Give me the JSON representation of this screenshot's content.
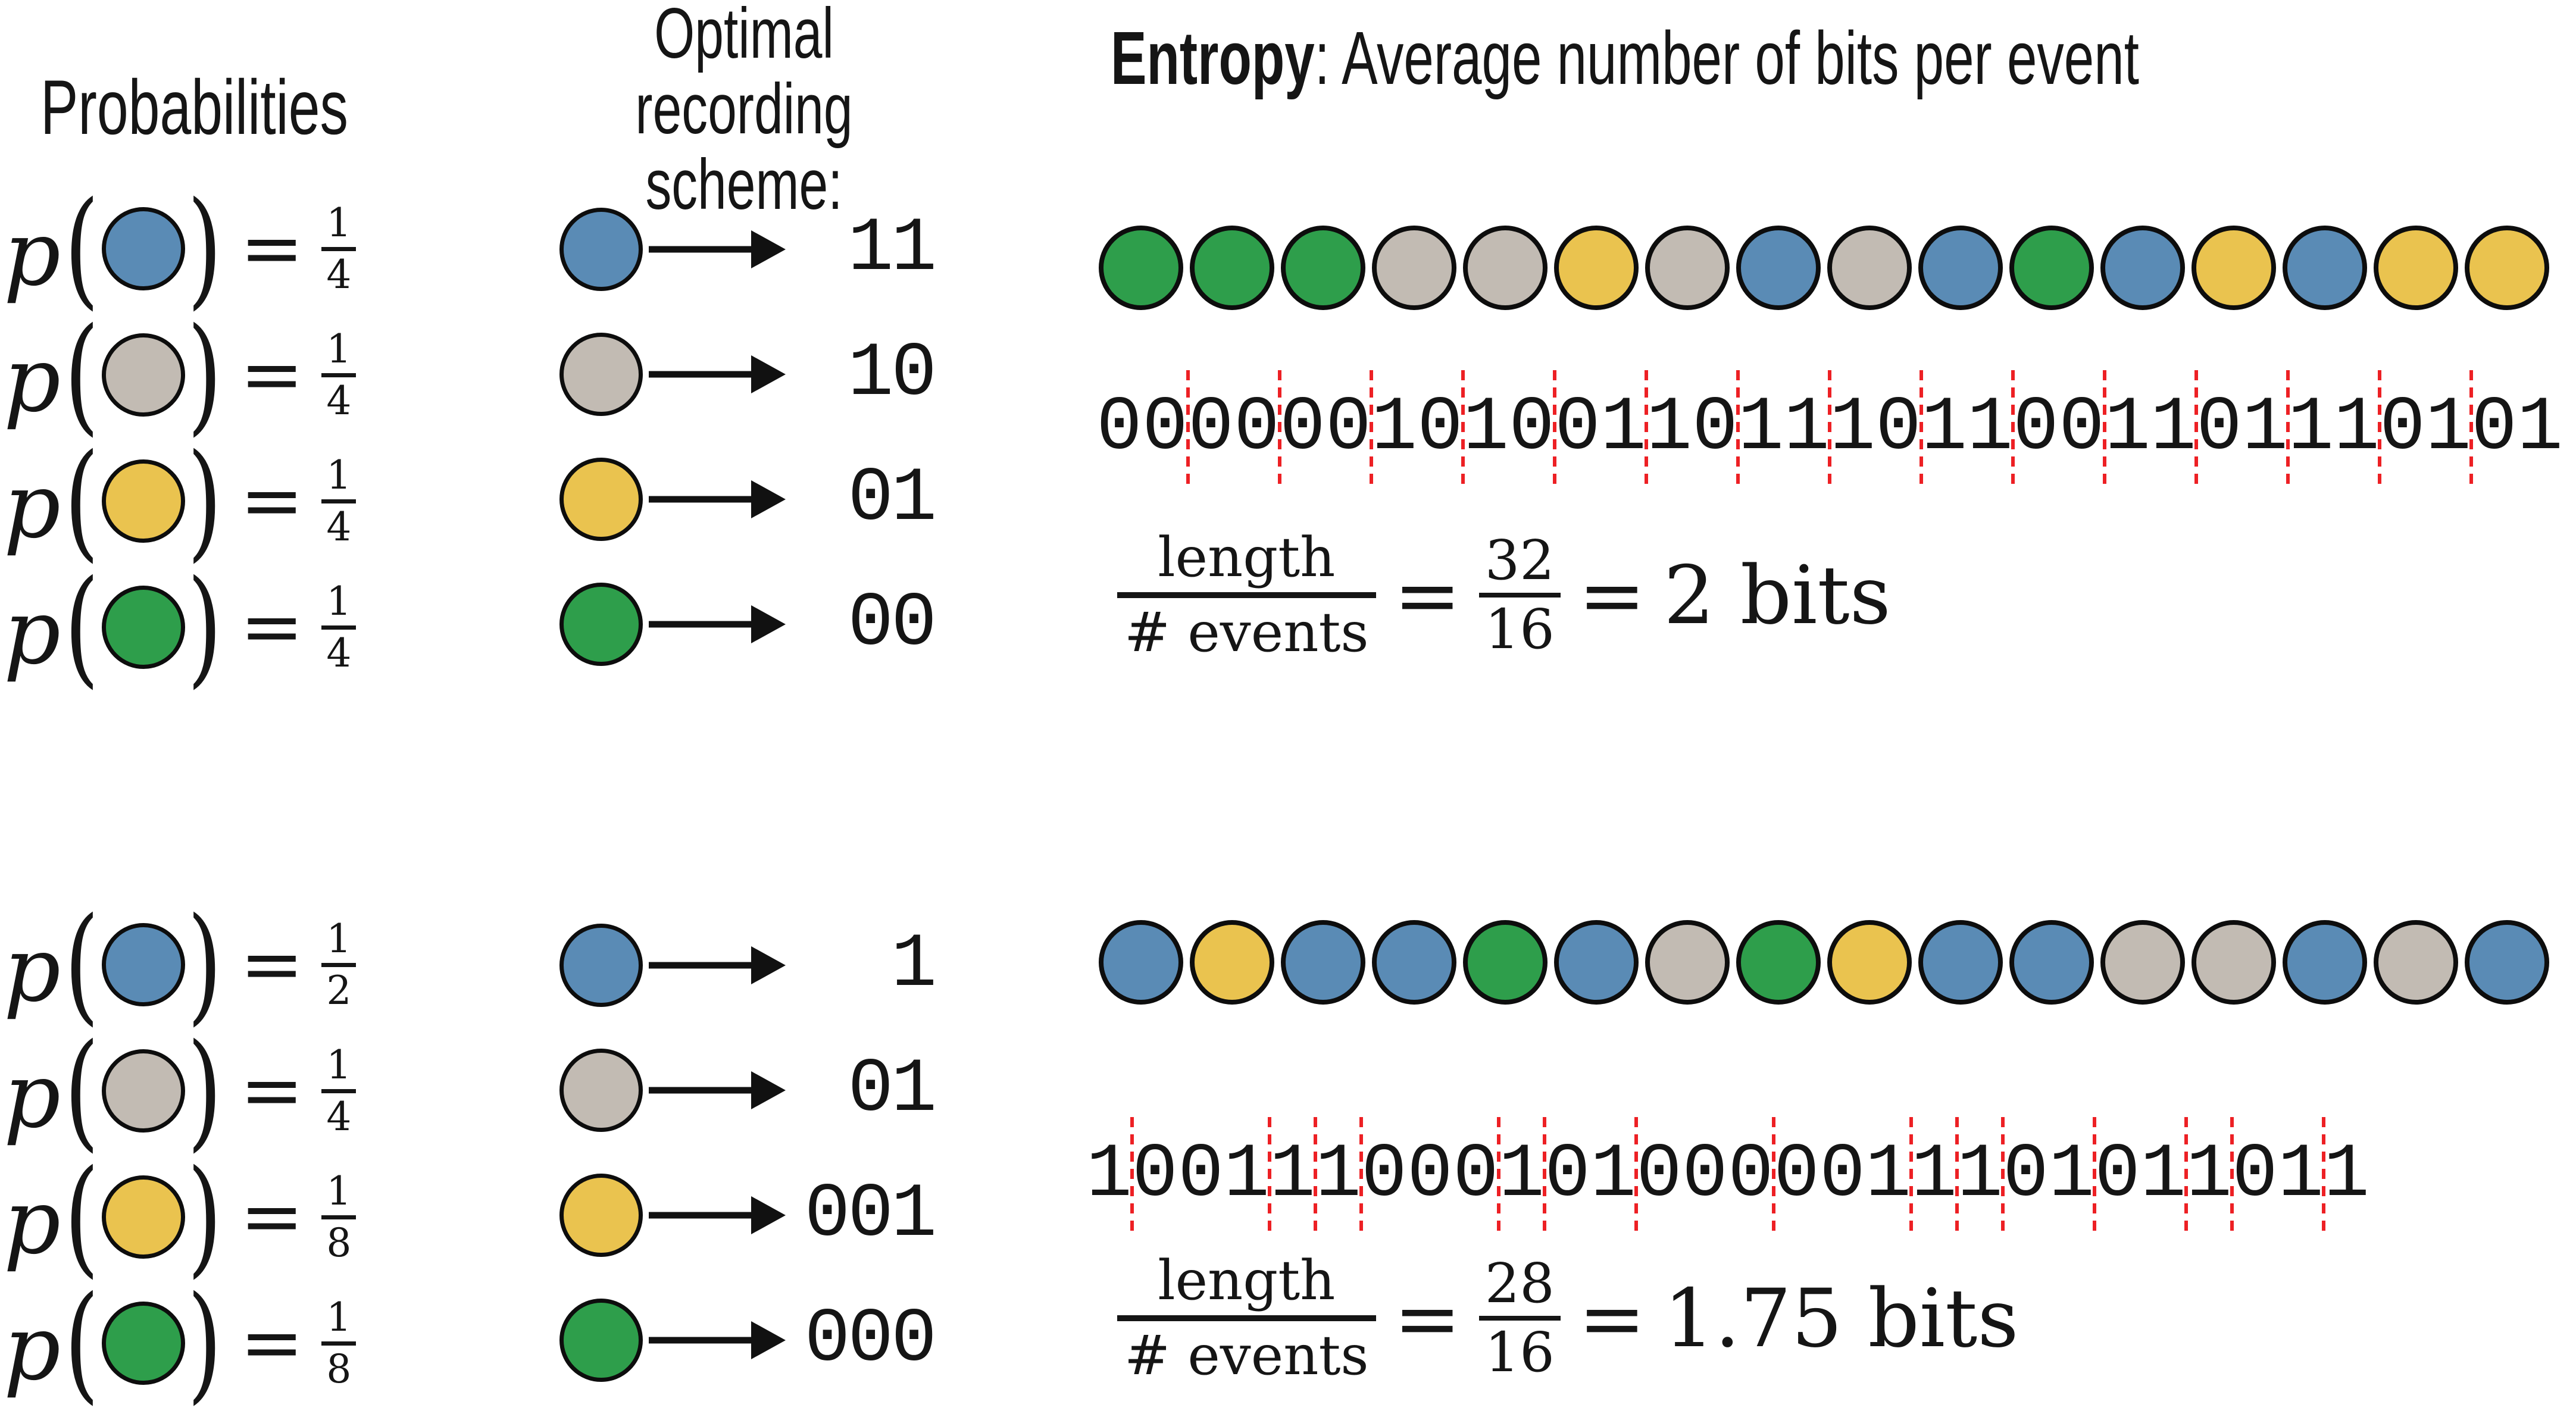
{
  "figure": {
    "titles": {
      "probabilities": "Probabilities",
      "scheme_line1": "Optimal recording",
      "scheme_line2": "scheme:",
      "entropy_bold": "Entropy",
      "entropy_rest": ": Average number of bits per event"
    },
    "math": {
      "p": "p",
      "open_paren": "(",
      "close_paren": ")",
      "equals": "="
    },
    "colors": {
      "blue": "#5a8bb5",
      "gray": "#c2bbb3",
      "yellow": "#eac34f",
      "green": "#2e9e4b",
      "red": "#ed2024",
      "ink": "#151515"
    },
    "sections": [
      {
        "probabilities": [
          {
            "color": "blue",
            "numerator": "1",
            "denominator": "4"
          },
          {
            "color": "gray",
            "numerator": "1",
            "denominator": "4"
          },
          {
            "color": "yellow",
            "numerator": "1",
            "denominator": "4"
          },
          {
            "color": "green",
            "numerator": "1",
            "denominator": "4"
          }
        ],
        "scheme": [
          {
            "color": "blue",
            "code": "11"
          },
          {
            "color": "gray",
            "code": "10"
          },
          {
            "color": "yellow",
            "code": "01"
          },
          {
            "color": "green",
            "code": "00"
          }
        ],
        "event_sequence": [
          "green",
          "green",
          "green",
          "gray",
          "gray",
          "yellow",
          "gray",
          "blue",
          "gray",
          "blue",
          "green",
          "blue",
          "yellow",
          "blue",
          "yellow",
          "yellow"
        ],
        "bit_groups": [
          "00",
          "00",
          "00",
          "10",
          "10",
          "01",
          "10",
          "11",
          "10",
          "11",
          "00",
          "11",
          "01",
          "11",
          "01",
          "01"
        ],
        "bit_string": "00000010100110111011001101110101",
        "formula": {
          "numerator": "length",
          "denominator": "# events",
          "equals": "=",
          "ratio_numerator": "32",
          "ratio_denominator": "16",
          "result": "2 bits"
        }
      },
      {
        "probabilities": [
          {
            "color": "blue",
            "numerator": "1",
            "denominator": "2"
          },
          {
            "color": "gray",
            "numerator": "1",
            "denominator": "4"
          },
          {
            "color": "yellow",
            "numerator": "1",
            "denominator": "8"
          },
          {
            "color": "green",
            "numerator": "1",
            "denominator": "8"
          }
        ],
        "scheme": [
          {
            "color": "blue",
            "code": "1"
          },
          {
            "color": "gray",
            "code": "01"
          },
          {
            "color": "yellow",
            "code": "001"
          },
          {
            "color": "green",
            "code": "000"
          }
        ],
        "event_sequence": [
          "blue",
          "yellow",
          "blue",
          "blue",
          "green",
          "blue",
          "gray",
          "green",
          "yellow",
          "blue",
          "blue",
          "gray",
          "gray",
          "blue",
          "gray",
          "blue"
        ],
        "bit_groups": [
          "1",
          "001",
          "1",
          "1",
          "000",
          "1",
          "01",
          "000",
          "001",
          "1",
          "1",
          "01",
          "01",
          "1",
          "01",
          "1"
        ],
        "bit_string": "1001110001010000011101011011",
        "formula": {
          "numerator": "length",
          "denominator": "# events",
          "equals": "=",
          "ratio_numerator": "28",
          "ratio_denominator": "16",
          "result": "1.75 bits"
        }
      }
    ]
  }
}
